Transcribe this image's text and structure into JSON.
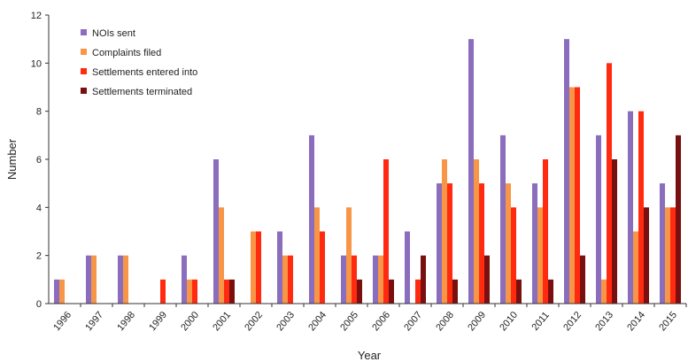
{
  "chart_data": {
    "type": "bar",
    "xlabel": "Year",
    "ylabel": "Number",
    "ylim": [
      0,
      12
    ],
    "yticks": [
      0,
      2,
      4,
      6,
      8,
      10,
      12
    ],
    "grid": false,
    "legend_position": "top-left",
    "categories": [
      "1996",
      "1997",
      "1998",
      "1999",
      "2000",
      "2001",
      "2002",
      "2003",
      "2004",
      "2005",
      "2006",
      "2007",
      "2008",
      "2009",
      "2010",
      "2011",
      "2012",
      "2013",
      "2014",
      "2015"
    ],
    "series": [
      {
        "name": "NOIs sent",
        "color": "#8b6dbd",
        "values": [
          1,
          2,
          2,
          0,
          2,
          6,
          0,
          3,
          7,
          2,
          2,
          3,
          5,
          11,
          7,
          5,
          11,
          7,
          8,
          5
        ]
      },
      {
        "name": "Complaints filed",
        "color": "#f79646",
        "values": [
          1,
          2,
          2,
          0,
          1,
          4,
          3,
          2,
          4,
          4,
          2,
          0,
          6,
          6,
          5,
          4,
          9,
          1,
          3,
          4
        ]
      },
      {
        "name": "Settlements entered into",
        "color": "#ff2a10",
        "values": [
          0,
          0,
          0,
          1,
          1,
          1,
          3,
          2,
          3,
          2,
          6,
          1,
          5,
          5,
          4,
          6,
          9,
          10,
          8,
          4
        ]
      },
      {
        "name": "Settlements terminated",
        "color": "#7a0f0f",
        "values": [
          0,
          0,
          0,
          0,
          0,
          1,
          0,
          0,
          0,
          1,
          1,
          2,
          1,
          2,
          1,
          1,
          2,
          6,
          4,
          7
        ]
      }
    ]
  }
}
